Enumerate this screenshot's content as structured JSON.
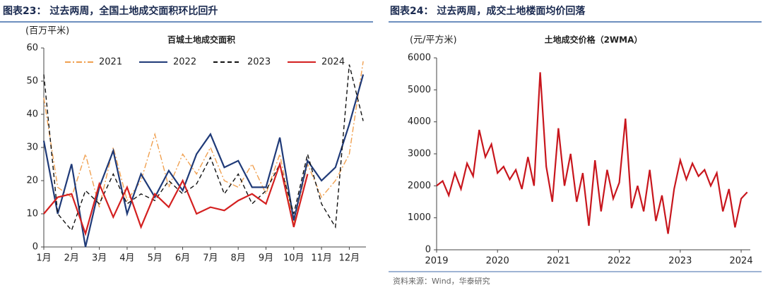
{
  "chart_data": [
    {
      "type": "line",
      "caption": "图表23：  过去两周，全国土地成交面积环比回升",
      "title": "百城土地成交面积",
      "y_label": "(百万平米)",
      "x": [
        0,
        0.5,
        1,
        1.5,
        2,
        2.5,
        3,
        3.5,
        4,
        4.5,
        5,
        5.5,
        6,
        6.5,
        7,
        7.5,
        8,
        8.5,
        9,
        9.5,
        10,
        10.5,
        11,
        11.5
      ],
      "xlim": [
        0,
        11.6
      ],
      "xticks": [
        {
          "value": 0,
          "label": "1月"
        },
        {
          "value": 1,
          "label": "2月"
        },
        {
          "value": 2,
          "label": "3月"
        },
        {
          "value": 3,
          "label": "4月"
        },
        {
          "value": 4,
          "label": "5月"
        },
        {
          "value": 5,
          "label": "6月"
        },
        {
          "value": 6,
          "label": "7月"
        },
        {
          "value": 7,
          "label": "8月"
        },
        {
          "value": 8,
          "label": "9月"
        },
        {
          "value": 9,
          "label": "10月"
        },
        {
          "value": 10,
          "label": "11月"
        },
        {
          "value": 11,
          "label": "12月"
        }
      ],
      "ylim": [
        0,
        60
      ],
      "yticks": [
        0,
        10,
        20,
        30,
        40,
        50,
        60
      ],
      "legend": "top",
      "series": [
        {
          "name": "2021",
          "color": "#f0a050",
          "dash": "dashdot",
          "values": [
            45,
            18,
            15,
            28,
            12,
            30,
            14,
            20,
            34,
            18,
            28,
            22,
            30,
            20,
            18,
            25,
            16,
            28,
            7,
            25,
            15,
            20,
            28,
            56
          ]
        },
        {
          "name": "2022",
          "color": "#1f3a78",
          "dash": "solid",
          "values": [
            32,
            10,
            25,
            0,
            18,
            29,
            10,
            22,
            15,
            23,
            17,
            28,
            34,
            24,
            26,
            18,
            18,
            33,
            8,
            26,
            20,
            24,
            37,
            52
          ]
        },
        {
          "name": "2023",
          "color": "#111111",
          "dash": "dashed",
          "values": [
            52,
            10,
            5,
            17,
            13,
            22,
            13,
            16,
            14,
            20,
            16,
            19,
            27,
            16,
            22,
            13,
            17,
            25,
            10,
            28,
            13,
            6,
            55,
            38
          ]
        },
        {
          "name": "2024",
          "color": "#d42020",
          "dash": "solid",
          "values": [
            10,
            15,
            16,
            4,
            19,
            9,
            18,
            6,
            16,
            12,
            20,
            10,
            12,
            11,
            14,
            16,
            13,
            25,
            6,
            22,
            null,
            null,
            null,
            null
          ]
        }
      ]
    },
    {
      "type": "line",
      "caption": "图表24：  过去两周，成交土地楼面均价回落",
      "title": "土地成交价格（2WMA）",
      "y_label": "(元/平方米)",
      "source": "资料来源：Wind，华泰研究",
      "x": [
        2019.0,
        2019.1,
        2019.2,
        2019.3,
        2019.4,
        2019.5,
        2019.6,
        2019.7,
        2019.8,
        2019.9,
        2020.0,
        2020.1,
        2020.2,
        2020.3,
        2020.4,
        2020.5,
        2020.6,
        2020.7,
        2020.8,
        2020.9,
        2021.0,
        2021.1,
        2021.2,
        2021.3,
        2021.4,
        2021.5,
        2021.6,
        2021.7,
        2021.8,
        2021.9,
        2022.0,
        2022.1,
        2022.2,
        2022.3,
        2022.4,
        2022.5,
        2022.6,
        2022.7,
        2022.8,
        2022.9,
        2023.0,
        2023.1,
        2023.2,
        2023.3,
        2023.4,
        2023.5,
        2023.6,
        2023.7,
        2023.8,
        2023.9,
        2024.0,
        2024.1
      ],
      "xlim": [
        2019,
        2024.15
      ],
      "xticks": [
        2019,
        2020,
        2021,
        2022,
        2023,
        2024
      ],
      "ylim": [
        0,
        6000
      ],
      "yticks": [
        0,
        1000,
        2000,
        3000,
        4000,
        5000,
        6000
      ],
      "series": [
        {
          "color": "#c8161d",
          "dash": "solid",
          "values": [
            2000,
            2150,
            1700,
            2400,
            1900,
            2700,
            2300,
            3750,
            2900,
            3300,
            2400,
            2600,
            2200,
            2500,
            1900,
            2900,
            2000,
            5550,
            2600,
            1500,
            3800,
            2000,
            3000,
            1500,
            2400,
            750,
            2800,
            1200,
            2500,
            1600,
            2100,
            4100,
            1300,
            2000,
            1200,
            2500,
            900,
            1700,
            500,
            1900,
            2800,
            2200,
            2700,
            2300,
            2500,
            2000,
            2400,
            1200,
            1900,
            700,
            1600,
            1800
          ]
        }
      ]
    }
  ]
}
